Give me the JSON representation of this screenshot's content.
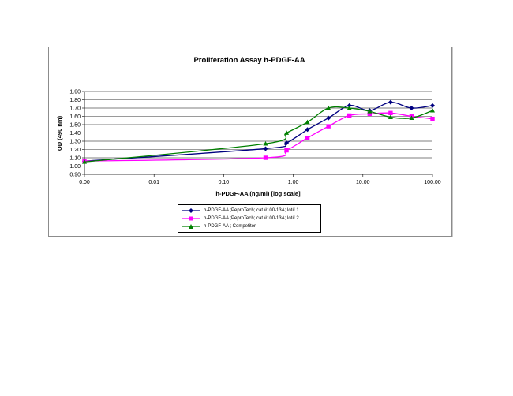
{
  "chart_data": {
    "type": "line",
    "title": "Proliferation Assay h-PDGF-AA",
    "xlabel": "h-PDGF-AA (ng/ml) [log scale]",
    "ylabel": "OD (490 nm)",
    "xscale": "log",
    "xlim": [
      0.001,
      100
    ],
    "ylim": [
      0.9,
      1.9
    ],
    "x_tick_labels": [
      "0.00",
      "0.01",
      "0.10",
      "1.00",
      "10.00",
      "100.00"
    ],
    "x_tick_values": [
      0.001,
      0.01,
      0.1,
      1,
      10,
      100
    ],
    "y_tick_labels": [
      "0.90",
      "1.00",
      "1.10",
      "1.20",
      "1.30",
      "1.40",
      "1.50",
      "1.60",
      "1.70",
      "1.80",
      "1.90"
    ],
    "grid": "horizontal",
    "legend_position": "bottom",
    "x": [
      0.001,
      0.4,
      0.8,
      1.6,
      3.2,
      6.4,
      12.5,
      25,
      50,
      100
    ],
    "series": [
      {
        "name": "h-PDGF-AA ;PeproTech; cat #100-13A; lot# 1",
        "color": "#000080",
        "marker": "diamond",
        "values": [
          1.06,
          1.21,
          1.28,
          1.44,
          1.58,
          1.73,
          1.67,
          1.77,
          1.7,
          1.73
        ]
      },
      {
        "name": "h-PDGF-AA ;PeproTech; cat #100-13A; lot# 2",
        "color": "#ff00ff",
        "marker": "square",
        "values": [
          1.06,
          1.1,
          1.19,
          1.34,
          1.48,
          1.61,
          1.63,
          1.64,
          1.6,
          1.57
        ]
      },
      {
        "name": "h-PDGF-AA ; Competitor",
        "color": "#008000",
        "marker": "triangle",
        "values": [
          1.05,
          1.27,
          1.4,
          1.53,
          1.7,
          1.7,
          1.66,
          1.59,
          1.58,
          1.67
        ]
      }
    ]
  }
}
